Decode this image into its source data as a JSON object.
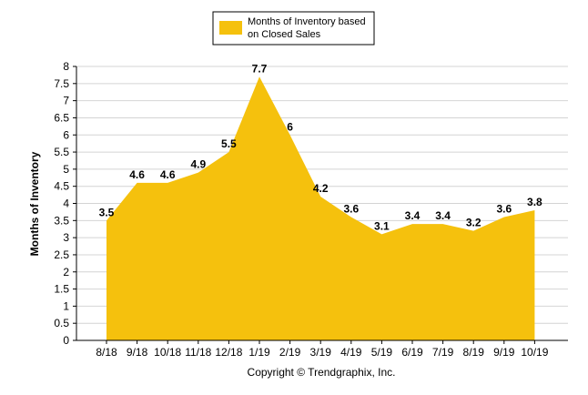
{
  "chart_data": {
    "type": "area",
    "categories": [
      "8/18",
      "9/18",
      "10/18",
      "11/18",
      "12/18",
      "1/19",
      "2/19",
      "3/19",
      "4/19",
      "5/19",
      "6/19",
      "7/19",
      "8/19",
      "9/19",
      "10/19"
    ],
    "series": [
      {
        "name": "Months of Inventory based on Closed Sales",
        "values": [
          3.5,
          4.6,
          4.6,
          4.9,
          5.5,
          7.7,
          6,
          4.2,
          3.6,
          3.1,
          3.4,
          3.4,
          3.2,
          3.6,
          3.8
        ],
        "color": "#F5C10D"
      }
    ],
    "legend_lines": [
      "Months of Inventory based",
      "on Closed Sales"
    ],
    "ylabel": "Months of Inventory",
    "ylim": [
      0,
      8
    ],
    "yticks": [
      "0",
      "0.5",
      "1",
      "1.5",
      "2",
      "2.5",
      "3",
      "3.5",
      "4",
      "4.5",
      "5",
      "5.5",
      "6",
      "6.5",
      "7",
      "7.5",
      "8"
    ],
    "grid": true,
    "legend_position": "top-center",
    "data_labels": [
      "3.5",
      "4.6",
      "4.6",
      "4.9",
      "5.5",
      "7.7",
      "6",
      "4.2",
      "3.6",
      "3.1",
      "3.4",
      "3.4",
      "3.2",
      "3.6",
      "3.8"
    ]
  },
  "footer": "Copyright © Trendgraphix, Inc."
}
